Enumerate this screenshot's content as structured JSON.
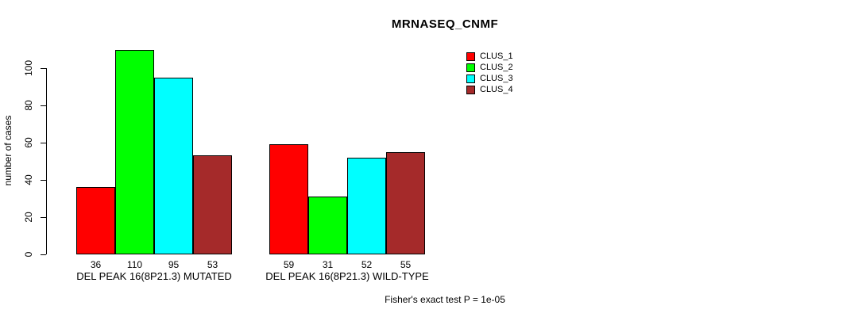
{
  "chart_data": {
    "type": "bar",
    "title": "MRNASEQ_CNMF",
    "ylabel": "number of cases",
    "xlabel": "",
    "categories": [
      "DEL PEAK 16(8P21.3) MUTATED",
      "DEL PEAK 16(8P21.3) WILD-TYPE"
    ],
    "series": [
      {
        "name": "CLUS_1",
        "color": "#ff0000",
        "values": [
          36,
          59
        ]
      },
      {
        "name": "CLUS_2",
        "color": "#00ff00",
        "values": [
          110,
          31
        ]
      },
      {
        "name": "CLUS_3",
        "color": "#00ffff",
        "values": [
          95,
          52
        ]
      },
      {
        "name": "CLUS_4",
        "color": "#a52a2a",
        "values": [
          53,
          55
        ]
      }
    ],
    "yticks": [
      0,
      20,
      40,
      60,
      80,
      100
    ],
    "ylim": [
      0,
      110
    ],
    "grid": false,
    "bar_value_labels_shown": true,
    "legend_position": "top-right",
    "annotation": "Fisher's exact test P = 1e-05"
  }
}
